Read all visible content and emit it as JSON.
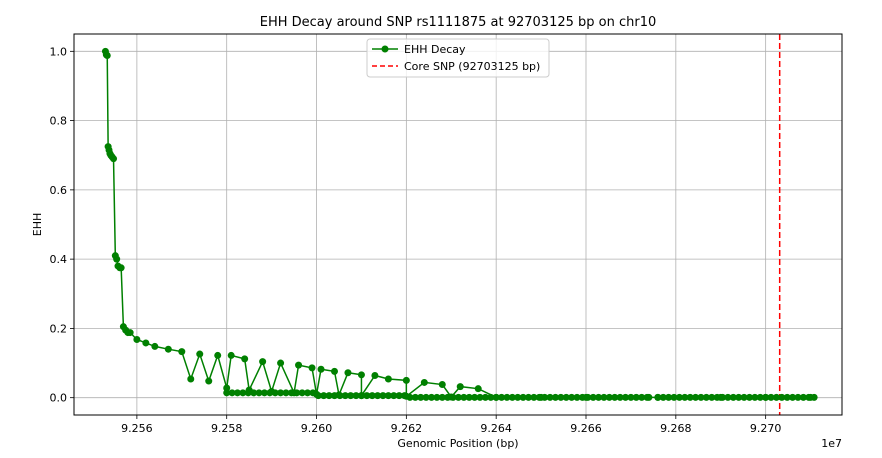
{
  "chart_data": {
    "type": "line",
    "title": "EHH Decay around SNP rs1111875 at 92703125 bp on chr10",
    "xlabel": "Genomic Position (bp)",
    "ylabel": "EHH",
    "x_offset_label": "1e7",
    "xlim": [
      9.2546,
      9.2717
    ],
    "ylim": [
      -0.05,
      1.05
    ],
    "x_ticks": [
      9.256,
      9.258,
      9.26,
      9.262,
      9.264,
      9.266,
      9.268,
      9.27
    ],
    "x_tick_labels": [
      "9.256",
      "9.258",
      "9.260",
      "9.262",
      "9.264",
      "9.266",
      "9.268",
      "9.270"
    ],
    "y_ticks": [
      0.0,
      0.2,
      0.4,
      0.6,
      0.8,
      1.0
    ],
    "y_tick_labels": [
      "0.0",
      "0.2",
      "0.4",
      "0.6",
      "0.8",
      "1.0"
    ],
    "grid": true,
    "legend_position": "top-center",
    "series": [
      {
        "name": "EHH Decay",
        "color": "#008000",
        "marker": "circle",
        "points": [
          [
            9.2553,
            1.0
          ],
          [
            9.25532,
            0.99
          ],
          [
            9.25534,
            0.988
          ],
          [
            9.25536,
            0.725
          ],
          [
            9.25538,
            0.715
          ],
          [
            9.2554,
            0.705
          ],
          [
            9.25542,
            0.7
          ],
          [
            9.25545,
            0.695
          ],
          [
            9.25548,
            0.69
          ],
          [
            9.25552,
            0.41
          ],
          [
            9.25555,
            0.4
          ],
          [
            9.25558,
            0.38
          ],
          [
            9.25562,
            0.375
          ],
          [
            9.25565,
            0.375
          ],
          [
            9.2557,
            0.205
          ],
          [
            9.25575,
            0.195
          ],
          [
            9.2558,
            0.188
          ],
          [
            9.25585,
            0.188
          ],
          [
            9.256,
            0.168
          ],
          [
            9.2562,
            0.158
          ],
          [
            9.2564,
            0.148
          ],
          [
            9.2567,
            0.14
          ],
          [
            9.257,
            0.133
          ],
          [
            9.2574,
            0.126
          ],
          [
            9.2578,
            0.122
          ],
          [
            9.2581,
            0.122
          ],
          [
            9.2584,
            0.112
          ],
          [
            9.2588,
            0.104
          ],
          [
            9.2592,
            0.1
          ],
          [
            9.2596,
            0.094
          ],
          [
            9.2599,
            0.086
          ],
          [
            9.2601,
            0.082
          ],
          [
            9.2604,
            0.076
          ],
          [
            9.2607,
            0.072
          ],
          [
            9.261,
            0.066
          ],
          [
            9.2613,
            0.064
          ],
          [
            9.2616,
            0.054
          ],
          [
            9.262,
            0.05
          ],
          [
            9.2624,
            0.044
          ],
          [
            9.2628,
            0.038
          ],
          [
            9.2632,
            0.032
          ],
          [
            9.2636,
            0.026
          ],
          [
            9.2572,
            0.054
          ],
          [
            9.2576,
            0.048
          ],
          [
            9.258,
            0.028
          ],
          [
            9.2585,
            0.022
          ],
          [
            9.259,
            0.018
          ],
          [
            9.2595,
            0.014
          ],
          [
            9.26,
            0.01
          ],
          [
            9.2605,
            0.008
          ],
          [
            9.261,
            0.006
          ],
          [
            9.262,
            0.004
          ],
          [
            9.263,
            0.002
          ],
          [
            9.264,
            0.001
          ],
          [
            9.265,
            0.001
          ],
          [
            9.266,
            0.001
          ],
          [
            9.2674,
            0.001
          ],
          [
            9.2676,
            0.001
          ],
          [
            9.269,
            0.001
          ],
          [
            9.27,
            0.001
          ],
          [
            9.271,
            0.001
          ]
        ]
      }
    ],
    "core_snp": {
      "name": "Core SNP (92703125 bp)",
      "x": 9.2703125,
      "color": "#ff0000",
      "linestyle": "dashed"
    }
  }
}
